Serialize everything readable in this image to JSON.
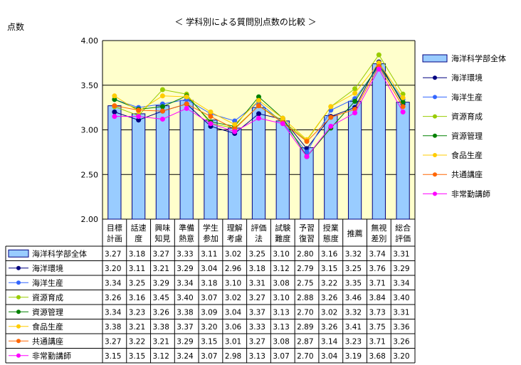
{
  "chart_data": {
    "type": "bar",
    "title": "＜ 学科別による質問別点数の比較 ＞",
    "ylabel": "点数",
    "ylim": [
      2.0,
      4.0
    ],
    "yticks": [
      "2.00",
      "2.50",
      "3.00",
      "3.50",
      "4.00"
    ],
    "grid": true,
    "plot_background": "#ffffcc",
    "legend_position": "right",
    "categories": [
      [
        "目標",
        "計画"
      ],
      [
        "話速",
        "度"
      ],
      [
        "興味",
        "知見"
      ],
      [
        "準備",
        "熱意"
      ],
      [
        "学生",
        "参加"
      ],
      [
        "理解",
        "考慮"
      ],
      [
        "評価",
        "法"
      ],
      [
        "試験",
        "難度"
      ],
      [
        "予習",
        "復習"
      ],
      [
        "授業",
        "態度"
      ],
      [
        "推薦"
      ],
      [
        "無視",
        "差別"
      ],
      [
        "総合",
        "評価"
      ]
    ],
    "series": [
      {
        "name": "海洋科学部全体",
        "kind": "bar",
        "color": "#99ccff",
        "values": [
          3.27,
          3.18,
          3.27,
          3.33,
          3.11,
          3.02,
          3.25,
          3.1,
          2.8,
          3.16,
          3.32,
          3.74,
          3.31
        ]
      },
      {
        "name": "海洋環境",
        "kind": "line",
        "color": "#000080",
        "values": [
          3.2,
          3.11,
          3.21,
          3.29,
          3.04,
          2.96,
          3.18,
          3.12,
          2.79,
          3.15,
          3.25,
          3.76,
          3.29
        ]
      },
      {
        "name": "海洋生産",
        "kind": "line",
        "color": "#3366ff",
        "values": [
          3.34,
          3.25,
          3.29,
          3.34,
          3.18,
          3.1,
          3.31,
          3.08,
          2.75,
          3.22,
          3.35,
          3.71,
          3.34
        ]
      },
      {
        "name": "資源育成",
        "kind": "line",
        "color": "#99cc00",
        "values": [
          3.26,
          3.16,
          3.45,
          3.4,
          3.07,
          3.02,
          3.27,
          3.1,
          2.88,
          3.26,
          3.46,
          3.84,
          3.4
        ]
      },
      {
        "name": "資源管理",
        "kind": "line",
        "color": "#008000",
        "values": [
          3.34,
          3.23,
          3.26,
          3.38,
          3.09,
          3.04,
          3.37,
          3.13,
          2.7,
          3.02,
          3.32,
          3.73,
          3.31
        ]
      },
      {
        "name": "食品生産",
        "kind": "line",
        "color": "#ffcc00",
        "values": [
          3.38,
          3.21,
          3.38,
          3.37,
          3.2,
          3.06,
          3.33,
          3.13,
          2.89,
          3.26,
          3.41,
          3.75,
          3.36
        ]
      },
      {
        "name": "共通講座",
        "kind": "line",
        "color": "#ff6600",
        "values": [
          3.27,
          3.22,
          3.21,
          3.29,
          3.15,
          3.01,
          3.27,
          3.08,
          2.87,
          3.14,
          3.23,
          3.71,
          3.26
        ]
      },
      {
        "name": "非常勤講師",
        "kind": "line",
        "color": "#ff00ff",
        "values": [
          3.15,
          3.15,
          3.12,
          3.24,
          3.07,
          2.98,
          3.13,
          3.07,
          2.7,
          3.04,
          3.19,
          3.68,
          3.2
        ]
      }
    ]
  }
}
